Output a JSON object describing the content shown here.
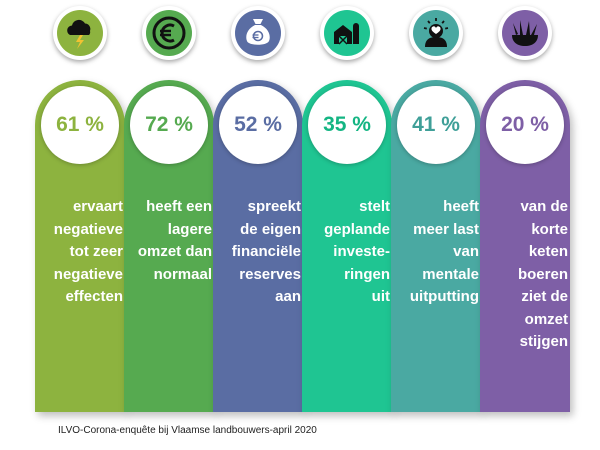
{
  "chart_data": {
    "type": "bar",
    "categories": [
      "ervaart negatieve tot zeer negatieve effecten",
      "heeft een lagere omzet dan normaal",
      "spreekt de eigen financiële reserves aan",
      "stelt geplande investeringen uit",
      "heeft meer last van mentale uitputting",
      "van de korte keten boeren ziet de omzet stijgen"
    ],
    "values": [
      61,
      72,
      52,
      35,
      41,
      20
    ],
    "unit": "%",
    "ylim": [
      0,
      100
    ],
    "title": "",
    "xlabel": "",
    "ylabel": ""
  },
  "items": [
    {
      "icon": "storm-cloud-icon",
      "value_label": "61 %",
      "lines": [
        "ervaart",
        "negatieve",
        "tot zeer",
        "negatieve",
        "effecten"
      ],
      "color": "#8db33f",
      "text_color": "#8db33f"
    },
    {
      "icon": "euro-icon",
      "value_label": "72 %",
      "lines": [
        "heeft een",
        "lagere",
        "omzet dan",
        "normaal"
      ],
      "color": "#56aa50",
      "text_color": "#56aa50"
    },
    {
      "icon": "money-bag-icon",
      "value_label": "52 %",
      "lines": [
        "spreekt",
        "de eigen",
        "financiële",
        "reserves",
        "aan"
      ],
      "color": "#5a6da3",
      "text_color": "#5a6da3"
    },
    {
      "icon": "farm-barn-icon",
      "value_label": "35 %",
      "lines": [
        "stelt",
        "geplande",
        "investe-",
        "ringen",
        "uit"
      ],
      "color": "#1fc592",
      "text_color": "#14b583"
    },
    {
      "icon": "head-heart-icon",
      "value_label": "41 %",
      "lines": [
        "heeft",
        "meer last",
        "van",
        "mentale",
        "uitputting"
      ],
      "color": "#4aa9a2",
      "text_color": "#3f9f98"
    },
    {
      "icon": "vegetable-basket-icon",
      "value_label": "20 %",
      "lines": [
        "van de",
        "korte",
        "keten",
        "boeren",
        "ziet de",
        "omzet",
        "stijgen"
      ],
      "color": "#7e5fa6",
      "text_color": "#7e5fa6"
    }
  ],
  "footnote": "ILVO-Corona-enquête bij Vlaamse landbouwers-april 2020"
}
